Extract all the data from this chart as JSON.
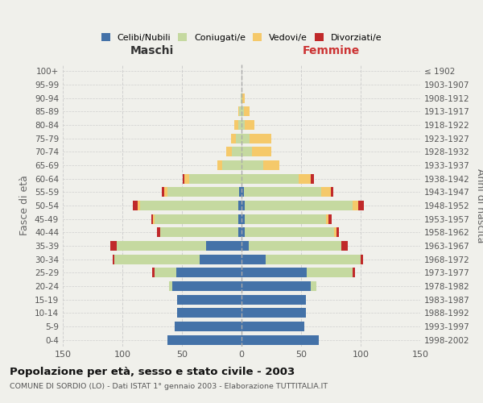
{
  "age_groups": [
    "0-4",
    "5-9",
    "10-14",
    "15-19",
    "20-24",
    "25-29",
    "30-34",
    "35-39",
    "40-44",
    "45-49",
    "50-54",
    "55-59",
    "60-64",
    "65-69",
    "70-74",
    "75-79",
    "80-84",
    "85-89",
    "90-94",
    "95-99",
    "100+"
  ],
  "birth_years": [
    "1998-2002",
    "1993-1997",
    "1988-1992",
    "1983-1987",
    "1978-1982",
    "1973-1977",
    "1968-1972",
    "1963-1967",
    "1958-1962",
    "1953-1957",
    "1948-1952",
    "1943-1947",
    "1938-1942",
    "1933-1937",
    "1928-1932",
    "1923-1927",
    "1918-1922",
    "1913-1917",
    "1908-1912",
    "1903-1907",
    "≤ 1902"
  ],
  "maschi": {
    "celibi": [
      62,
      56,
      54,
      54,
      58,
      55,
      35,
      30,
      3,
      3,
      3,
      2,
      0,
      0,
      0,
      0,
      0,
      0,
      0,
      0,
      0
    ],
    "coniugati": [
      0,
      0,
      0,
      0,
      3,
      18,
      72,
      75,
      65,
      70,
      82,
      60,
      44,
      16,
      8,
      5,
      3,
      2,
      1,
      0,
      0
    ],
    "vedovi": [
      0,
      0,
      0,
      0,
      0,
      0,
      0,
      0,
      0,
      1,
      2,
      3,
      4,
      4,
      5,
      4,
      3,
      1,
      0,
      0,
      0
    ],
    "divorziati": [
      0,
      0,
      0,
      0,
      0,
      2,
      1,
      5,
      3,
      2,
      4,
      2,
      1,
      0,
      0,
      0,
      0,
      0,
      0,
      0,
      0
    ]
  },
  "femmine": {
    "nubili": [
      65,
      53,
      54,
      54,
      58,
      55,
      20,
      6,
      3,
      3,
      3,
      2,
      0,
      0,
      0,
      0,
      0,
      0,
      0,
      0,
      0
    ],
    "coniugate": [
      0,
      0,
      0,
      0,
      5,
      38,
      80,
      78,
      75,
      68,
      90,
      65,
      48,
      18,
      9,
      7,
      3,
      2,
      1,
      0,
      0
    ],
    "vedove": [
      0,
      0,
      0,
      0,
      0,
      0,
      0,
      0,
      2,
      2,
      5,
      8,
      10,
      14,
      16,
      18,
      8,
      5,
      2,
      0,
      0
    ],
    "divorziate": [
      0,
      0,
      0,
      0,
      0,
      2,
      2,
      5,
      2,
      3,
      5,
      2,
      3,
      0,
      0,
      0,
      0,
      0,
      0,
      0,
      0
    ]
  },
  "colors": {
    "celibi": "#4472a8",
    "coniugati": "#c5d9a0",
    "vedovi": "#f5c96a",
    "divorziati": "#c0292a"
  },
  "xlim": 150,
  "title": "Popolazione per età, sesso e stato civile - 2003",
  "subtitle": "COMUNE DI SORDIO (LO) - Dati ISTAT 1° gennaio 2003 - Elaborazione TUTTITALIA.IT",
  "ylabel_left": "Fasce di età",
  "ylabel_right": "Anni di nascita",
  "bg_color": "#f0f0eb",
  "grid_color": "#cccccc"
}
